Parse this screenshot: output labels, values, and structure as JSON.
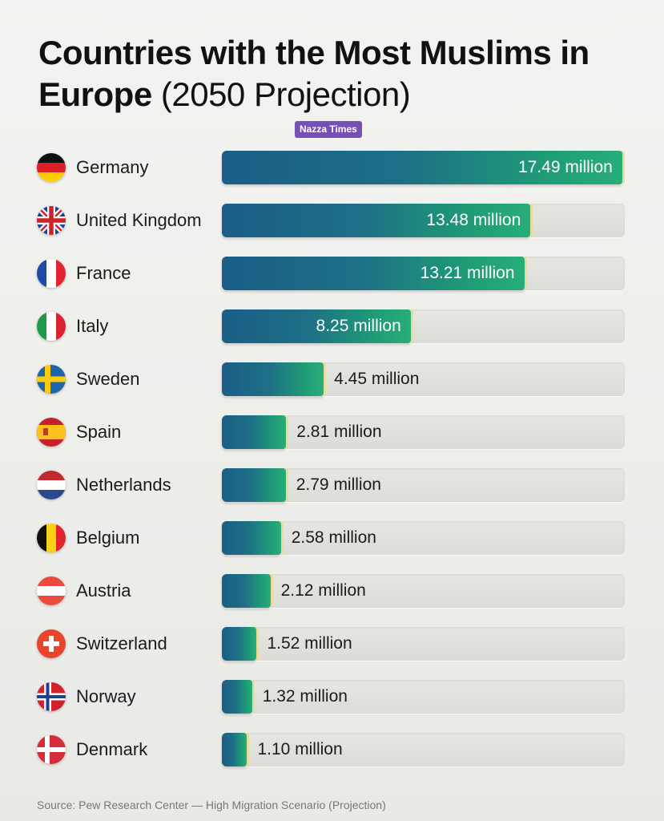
{
  "title": {
    "bold": "Countries with the Most Muslims in Europe",
    "light": "(2050 Projection)"
  },
  "badge": "Nazza Times",
  "source": "Source: Pew Research Center — High Migration Scenario (Projection)",
  "colors": {
    "bar_start": "#1b5e87",
    "bar_end": "#27ae78",
    "accent_edge": "#e8dc9a",
    "badge": "#7650b8"
  },
  "chart_data": {
    "type": "bar",
    "orientation": "horizontal",
    "title": "Countries with the Most Muslims in Europe (2050 Projection)",
    "xlabel": "",
    "ylabel": "",
    "unit": "million",
    "xlim": [
      0,
      17.6
    ],
    "categories": [
      "Germany",
      "United Kingdom",
      "France",
      "Italy",
      "Sweden",
      "Spain",
      "Netherlands",
      "Belgium",
      "Austria",
      "Switzerland",
      "Norway",
      "Denmark"
    ],
    "values": [
      17.49,
      13.48,
      13.21,
      8.25,
      4.45,
      2.81,
      2.79,
      2.58,
      2.12,
      1.52,
      1.32,
      1.1
    ],
    "labels": [
      "17.49 million",
      "13.48 million",
      "13.21 million",
      "8.25 million",
      "4.45 million",
      "2.81 million",
      "2.79 million",
      "2.58 million",
      "2.12 million",
      "1.52 million",
      "1.32 million",
      "1.10 million"
    ],
    "flags": [
      "germany-flag-icon",
      "united-kingdom-flag-icon",
      "france-flag-icon",
      "italy-flag-icon",
      "sweden-flag-icon",
      "spain-flag-icon",
      "netherlands-flag-icon",
      "belgium-flag-icon",
      "austria-flag-icon",
      "switzerland-flag-icon",
      "norway-flag-icon",
      "denmark-flag-icon"
    ]
  }
}
